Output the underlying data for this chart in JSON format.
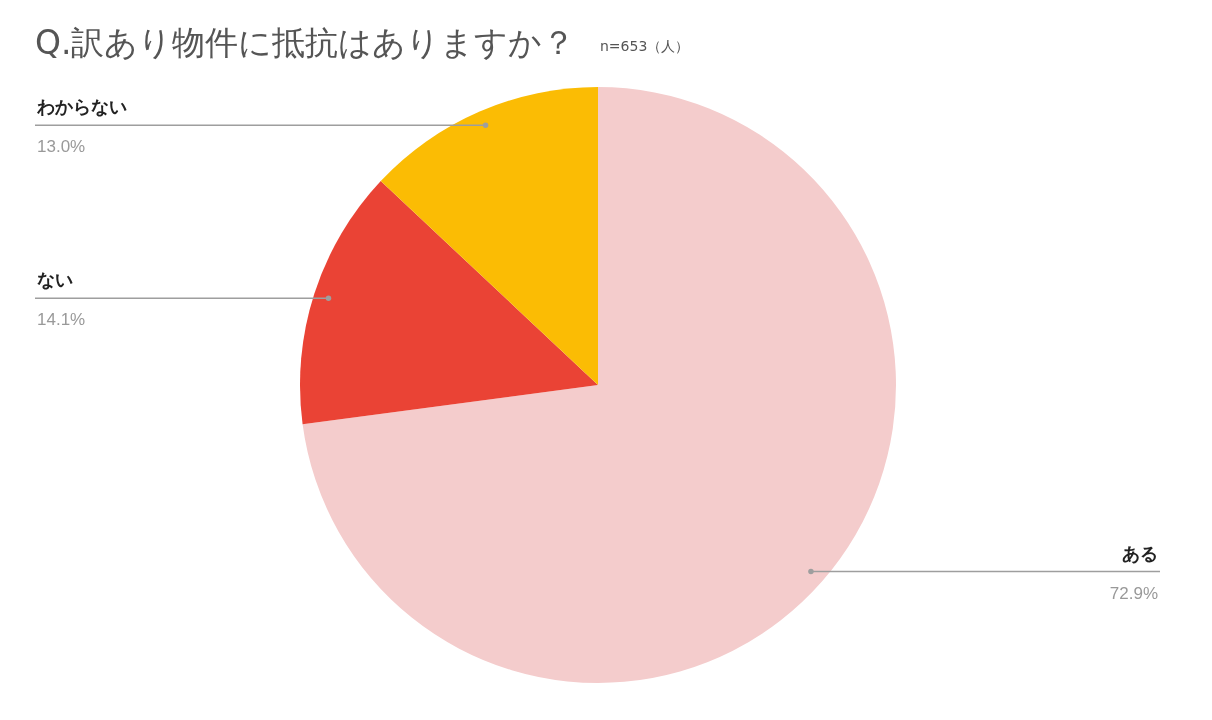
{
  "chart_data": {
    "type": "pie",
    "title": "Q.訳あり物件に抵抗はありますか？",
    "subtitle": "n=653（人）",
    "categories": [
      "ある",
      "ない",
      "わからない"
    ],
    "values": [
      72.9,
      14.1,
      13.0
    ],
    "colors": [
      "#f4cccc",
      "#ea4335",
      "#fbbc04"
    ],
    "value_labels": [
      "72.9%",
      "14.1%",
      "13.0%"
    ]
  }
}
